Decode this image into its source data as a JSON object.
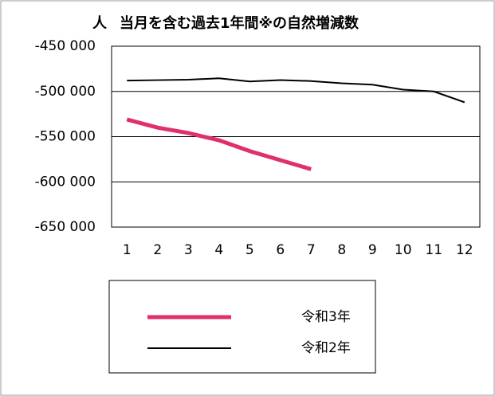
{
  "chart_data": {
    "type": "line",
    "title": "当月を含む過去1年間※の自然増減数",
    "y_unit": "人",
    "categories": [
      "1",
      "2",
      "3",
      "4",
      "5",
      "6",
      "7",
      "8",
      "9",
      "10",
      "11",
      "12"
    ],
    "series": [
      {
        "name": "令和3年",
        "color": "#e0306a",
        "values": [
          -531000,
          -540000,
          -546000,
          -554000,
          -566000,
          -576000,
          -586000,
          null,
          null,
          null,
          null,
          null
        ]
      },
      {
        "name": "令和2年",
        "color": "#000000",
        "values": [
          -488000,
          -487500,
          -487000,
          -485500,
          -489000,
          -487500,
          -488500,
          -491000,
          -492500,
          -498000,
          -500000,
          -512000
        ]
      }
    ],
    "ylim": [
      -650000,
      -450000
    ],
    "yticks": [
      {
        "value": -650000,
        "label": "-650 000"
      },
      {
        "value": -600000,
        "label": "-600 000"
      },
      {
        "value": -550000,
        "label": "-550 000"
      },
      {
        "value": -500000,
        "label": "-500 000"
      },
      {
        "value": -450000,
        "label": "-450 000"
      }
    ],
    "grid": true
  }
}
